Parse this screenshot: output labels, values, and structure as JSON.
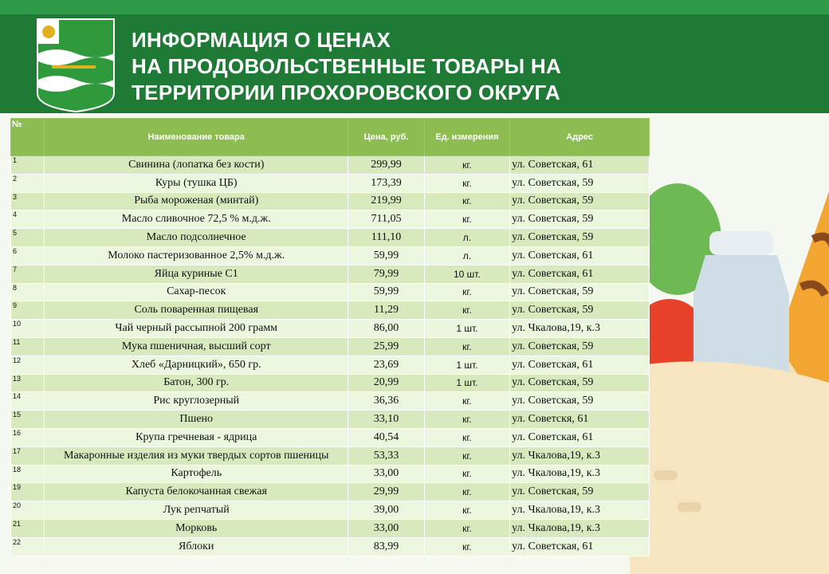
{
  "header": {
    "title": [
      "ИНФОРМАЦИЯ О ЦЕНАХ",
      "НА ПРОДОВОЛЬСТВЕННЫЕ ТОВАРЫ НА",
      "ТЕРРИТОРИИ ПРОХОРОВСКОГО ОКРУГА"
    ]
  },
  "table": {
    "columns": [
      "№",
      "Наименование товара",
      "Цена, руб.",
      "Ед. измерения",
      "Адрес"
    ],
    "rows": [
      [
        "1",
        "Свинина (лопатка без кости)",
        "299,99",
        "кг.",
        "ул. Советская, 61"
      ],
      [
        "2",
        "Куры (тушка ЦБ)",
        "173,39",
        "кг.",
        "ул. Советская, 59"
      ],
      [
        "3",
        "Рыба мороженая (минтай)",
        "219,99",
        "кг.",
        "ул. Советская, 59"
      ],
      [
        "4",
        "Масло сливочное 72,5 % м.д.ж.",
        "711,05",
        "кг.",
        "ул. Советская, 59"
      ],
      [
        "5",
        "Масло подсолнечное",
        "111,10",
        "л.",
        "ул. Советская, 59"
      ],
      [
        "6",
        "Молоко пастеризованное 2,5% м.д.ж.",
        "59,99",
        "л.",
        "ул. Советская, 61"
      ],
      [
        "7",
        "Яйца куриные С1",
        "79,99",
        "10 шт.",
        "ул. Советская, 61"
      ],
      [
        "8",
        "Сахар-песок",
        "59,99",
        "кг.",
        "ул. Советская, 59"
      ],
      [
        "9",
        "Соль поваренная пищевая",
        "11,29",
        "кг.",
        "ул. Советская, 59"
      ],
      [
        "10",
        "Чай черный рассыпной 200 грамм",
        "86,00",
        "1 шт.",
        "ул. Чкалова,19, к.3"
      ],
      [
        "11",
        "Мука пшеничная, высший сорт",
        "25,99",
        "кг.",
        "ул. Советская, 59"
      ],
      [
        "12",
        "Хлеб «Дарницкий», 650 гр.",
        "23,69",
        "1 шт.",
        "ул. Советская, 61"
      ],
      [
        "13",
        "Батон, 300 гр.",
        "20,99",
        "1 шт.",
        "ул. Советская, 59"
      ],
      [
        "14",
        "Рис круглозерный",
        "36,36",
        "кг.",
        "ул. Советская, 59"
      ],
      [
        "15",
        "Пшено",
        "33,10",
        "кг.",
        "ул. Советскя, 61"
      ],
      [
        "16",
        "Крупа гречневая - ядрица",
        "40,54",
        "кг.",
        "ул. Советская, 61"
      ],
      [
        "17",
        "Макаронные изделия из муки твердых сортов пшеницы",
        "53,33",
        "кг.",
        "ул. Чкалова,19, к.3"
      ],
      [
        "18",
        "Картофель",
        "33,00",
        "кг.",
        "ул. Чкалова,19, к.3"
      ],
      [
        "19",
        "Капуста белокочанная свежая",
        "29,99",
        "кг.",
        "ул. Советская, 59"
      ],
      [
        "20",
        "Лук репчатый",
        "39,00",
        "кг.",
        "ул. Чкалова,19, к.3"
      ],
      [
        "21",
        "Морковь",
        "33,00",
        "кг.",
        "ул. Чкалова,19, к.3"
      ],
      [
        "22",
        "Яблоки",
        "83,99",
        "кг.",
        "ул. Советская, 61"
      ]
    ]
  }
}
